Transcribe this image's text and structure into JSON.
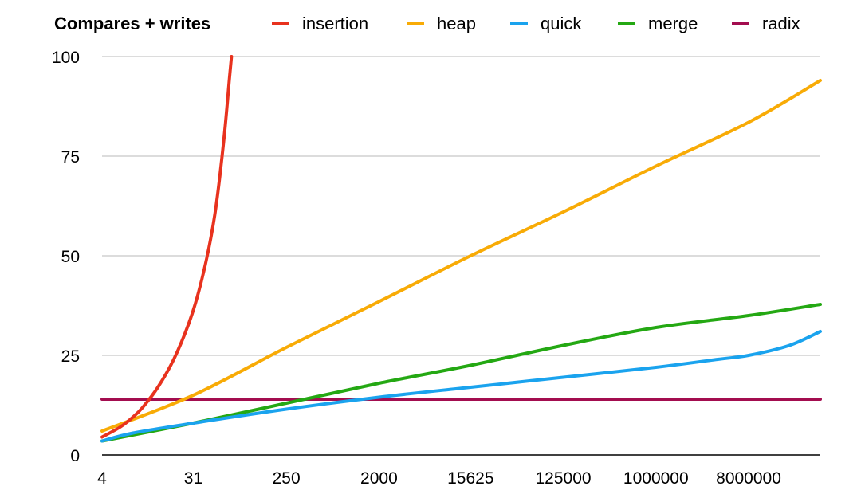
{
  "chart_data": {
    "type": "line",
    "title": "Compares + writes",
    "xlabel": "",
    "ylabel": "",
    "x_scale": "log",
    "x_ticks": [
      4,
      31,
      250,
      2000,
      15625,
      125000,
      1000000,
      8000000
    ],
    "x_range": [
      4,
      40000000
    ],
    "ylim": [
      0,
      100
    ],
    "y_ticks": [
      0,
      25,
      50,
      75,
      100
    ],
    "grid": "horizontal",
    "legend_position": "top",
    "series": [
      {
        "name": "insertion",
        "color": "#e8321e",
        "points": [
          [
            4,
            4.5
          ],
          [
            6,
            7
          ],
          [
            8,
            9.5
          ],
          [
            10,
            12
          ],
          [
            14,
            17
          ],
          [
            20,
            24
          ],
          [
            28,
            33
          ],
          [
            35,
            41
          ],
          [
            44,
            52
          ],
          [
            52,
            63
          ],
          [
            62,
            80
          ],
          [
            70,
            95
          ],
          [
            73,
            100
          ]
        ]
      },
      {
        "name": "heap",
        "color": "#f8ab06",
        "points": [
          [
            4,
            6
          ],
          [
            31,
            15
          ],
          [
            250,
            27
          ],
          [
            2000,
            38.5
          ],
          [
            15625,
            50
          ],
          [
            125000,
            61
          ],
          [
            1000000,
            72.5
          ],
          [
            8000000,
            83.5
          ],
          [
            40000000,
            94
          ]
        ]
      },
      {
        "name": "quick",
        "color": "#1aa3ee",
        "points": [
          [
            4,
            3.5
          ],
          [
            8,
            5.5
          ],
          [
            31,
            8
          ],
          [
            250,
            11.5
          ],
          [
            2000,
            14.5
          ],
          [
            15625,
            17
          ],
          [
            125000,
            19.5
          ],
          [
            1000000,
            22
          ],
          [
            4000000,
            24
          ],
          [
            8000000,
            25
          ],
          [
            20000000,
            27.5
          ],
          [
            40000000,
            31
          ]
        ]
      },
      {
        "name": "merge",
        "color": "#24a813",
        "points": [
          [
            4,
            3.5
          ],
          [
            31,
            8
          ],
          [
            250,
            13
          ],
          [
            2000,
            18
          ],
          [
            15625,
            22.5
          ],
          [
            125000,
            27.5
          ],
          [
            1000000,
            32
          ],
          [
            8000000,
            35
          ],
          [
            40000000,
            37.8
          ]
        ]
      },
      {
        "name": "radix",
        "color": "#a30d4f",
        "points": [
          [
            4,
            14
          ],
          [
            40000000,
            14
          ]
        ]
      }
    ]
  }
}
